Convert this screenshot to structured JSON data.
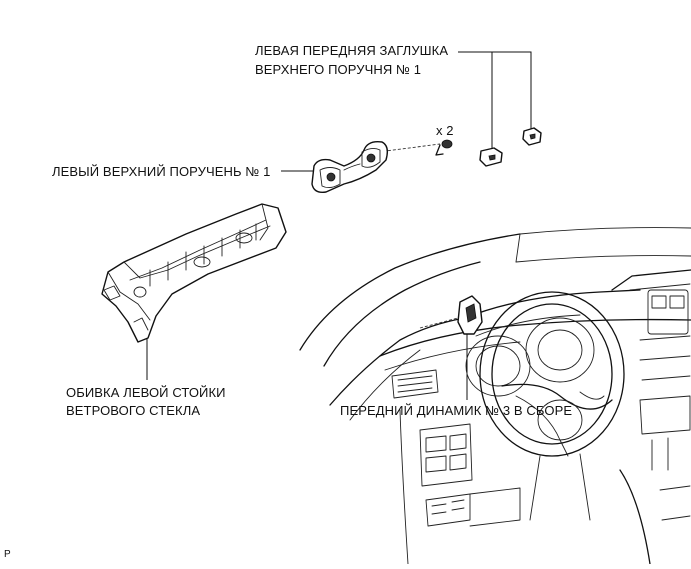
{
  "labels": {
    "cap_line1": "ЛЕВАЯ ПЕРЕДНЯЯ ЗАГЛУШКА",
    "cap_line2": "ВЕРХНЕГО ПОРУЧНЯ № 1",
    "qty": "x 2",
    "grip": "ЛЕВЫЙ ВЕРХНИЙ ПОРУЧЕНЬ № 1",
    "garnish_line1": "ОБИВКА ЛЕВОЙ СТОЙКИ",
    "garnish_line2": "ВЕТРОВОГО СТЕКЛА",
    "speaker": "ПЕРЕДНИЙ ДИНАМИК № 3 В СБОРЕ",
    "corner": "P"
  }
}
